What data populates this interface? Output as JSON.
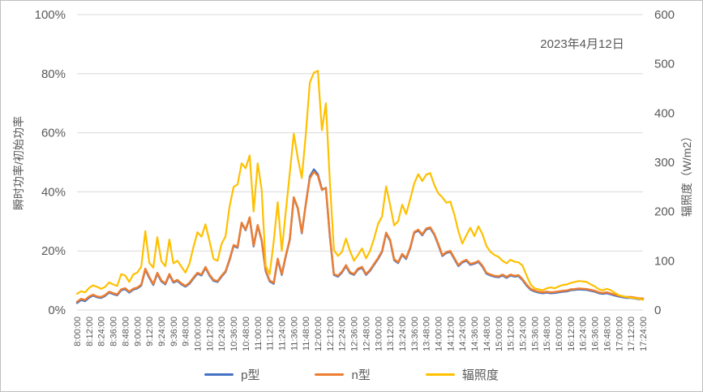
{
  "colors": {
    "axis_text": "#595959",
    "gridline": "#d9d9d9",
    "border": "#bfbfbf",
    "background": "#ffffff"
  },
  "chart_data": {
    "type": "line",
    "title": "",
    "annotation": "2023年4月12日",
    "ylabel_left": "瞬时功率/初始功率",
    "ylabel_right": "辐照度（W/m2）",
    "grid": true,
    "legend_position": "bottom",
    "left_axis": {
      "min": 0,
      "max": 100,
      "unit": "%",
      "ticks": [
        "100%",
        "80%",
        "60%",
        "40%",
        "20%",
        "0%"
      ]
    },
    "right_axis": {
      "min": 0,
      "max": 600,
      "unit": "W/m2",
      "ticks": [
        "600",
        "500",
        "400",
        "300",
        "200",
        "100",
        "0"
      ]
    },
    "x_axis": {
      "start": "8:00:00",
      "end": "17:24:00",
      "sample_step_minutes": 4,
      "tick_labels": [
        "8:00:00",
        "8:12:00",
        "8:24:00",
        "8:36:00",
        "8:48:00",
        "9:00:00",
        "9:12:00",
        "9:24:00",
        "9:36:00",
        "9:48:00",
        "10:00:00",
        "10:12:00",
        "10:24:00",
        "10:36:00",
        "10:48:00",
        "11:00:00",
        "11:12:00",
        "11:24:00",
        "11:36:00",
        "11:48:00",
        "12:00:00",
        "12:12:00",
        "12:24:00",
        "12:36:00",
        "12:48:00",
        "13:00:00",
        "13:12:00",
        "13:24:00",
        "13:36:00",
        "13:48:00",
        "14:00:00",
        "14:12:00",
        "14:24:00",
        "14:36:00",
        "14:48:00",
        "15:00:00",
        "15:12:00",
        "15:24:00",
        "15:36:00",
        "15:48:00",
        "16:00:00",
        "16:12:00",
        "16:24:00",
        "16:36:00",
        "16:48:00",
        "17:00:00",
        "17:12:00",
        "17:24:00"
      ]
    },
    "series": [
      {
        "name": "p型",
        "color": "#4472C4",
        "axis": "left",
        "unit": "%",
        "values": [
          2.4,
          3.4,
          3.0,
          4.2,
          4.9,
          4.3,
          4.1,
          4.8,
          5.9,
          5.4,
          5.0,
          6.7,
          7.1,
          5.9,
          6.9,
          7.3,
          8.3,
          13.7,
          10.9,
          8.5,
          12.3,
          9.7,
          8.7,
          11.9,
          9.3,
          9.9,
          8.7,
          7.9,
          8.9,
          10.7,
          12.3,
          11.7,
          14.3,
          11.7,
          9.9,
          9.5,
          11.3,
          12.9,
          16.9,
          21.7,
          21.1,
          29.4,
          27.0,
          31.2,
          21.5,
          28.6,
          23.5,
          13.1,
          9.7,
          8.9,
          17.1,
          11.9,
          18.1,
          23.8,
          38.0,
          34.4,
          26.0,
          35.9,
          45.2,
          47.6,
          46.0,
          40.9,
          41.2,
          24.7,
          11.9,
          11.3,
          12.7,
          14.9,
          12.5,
          11.9,
          13.7,
          14.3,
          11.9,
          13.3,
          15.3,
          17.3,
          19.7,
          25.9,
          23.5,
          16.9,
          15.9,
          18.7,
          17.3,
          20.9,
          26.1,
          26.9,
          25.3,
          27.3,
          27.7,
          25.5,
          22.1,
          18.3,
          19.3,
          19.7,
          17.3,
          14.9,
          16.1,
          16.7,
          15.3,
          15.7,
          16.3,
          14.7,
          12.3,
          11.7,
          11.3,
          11.1,
          11.7,
          10.9,
          11.7,
          11.3,
          11.5,
          10.1,
          8.3,
          6.9,
          6.3,
          5.9,
          5.7,
          5.9,
          5.7,
          5.8,
          6.0,
          6.2,
          6.3,
          6.7,
          6.8,
          7.0,
          6.9,
          6.8,
          6.5,
          6.2,
          5.7,
          5.5,
          5.7,
          5.3,
          4.9,
          4.6,
          4.3,
          4.1,
          4.1,
          3.9,
          3.7,
          3.6
        ]
      },
      {
        "name": "n型",
        "color": "#ED7D31",
        "axis": "left",
        "unit": "%",
        "values": [
          2.8,
          3.8,
          3.4,
          4.6,
          5.2,
          4.6,
          4.4,
          5.1,
          6.2,
          5.7,
          5.3,
          7.0,
          7.4,
          6.2,
          7.2,
          7.6,
          8.6,
          14.0,
          11.2,
          8.8,
          12.6,
          10.0,
          9.0,
          12.2,
          9.6,
          10.2,
          9.0,
          8.2,
          9.2,
          11.0,
          12.6,
          12.0,
          14.6,
          12.0,
          10.2,
          9.8,
          11.6,
          13.2,
          17.2,
          22.0,
          21.4,
          29.6,
          27.2,
          31.4,
          21.8,
          28.8,
          23.8,
          13.4,
          10.0,
          9.2,
          17.4,
          12.2,
          18.4,
          24.0,
          38.2,
          34.6,
          26.2,
          36.0,
          44.6,
          46.8,
          45.4,
          40.6,
          41.4,
          25.0,
          12.2,
          11.6,
          13.0,
          15.2,
          12.8,
          12.2,
          14.0,
          14.6,
          12.2,
          13.6,
          15.6,
          17.6,
          20.0,
          26.2,
          23.8,
          17.2,
          16.2,
          19.0,
          17.6,
          21.2,
          26.4,
          27.2,
          25.6,
          27.6,
          28.0,
          25.8,
          22.4,
          18.6,
          19.6,
          20.0,
          17.6,
          15.2,
          16.4,
          17.0,
          15.6,
          16.0,
          16.6,
          15.0,
          12.6,
          12.0,
          11.6,
          11.4,
          12.0,
          11.2,
          12.0,
          11.6,
          11.8,
          10.4,
          8.6,
          7.2,
          6.6,
          6.2,
          6.0,
          6.2,
          6.0,
          6.1,
          6.3,
          6.5,
          6.6,
          7.0,
          7.1,
          7.3,
          7.2,
          7.1,
          6.8,
          6.5,
          6.0,
          5.8,
          6.0,
          5.6,
          5.2,
          4.9,
          4.6,
          4.4,
          4.4,
          4.2,
          4.0,
          3.9
        ]
      },
      {
        "name": "辐照度",
        "color": "#FFC000",
        "axis": "right",
        "unit": "W/m2",
        "values": [
          33,
          38,
          36,
          45,
          50,
          47,
          43,
          47,
          56,
          52,
          49,
          73,
          70,
          57,
          72,
          76,
          88,
          160,
          96,
          86,
          148,
          99,
          89,
          143,
          95,
          100,
          88,
          76,
          94,
          128,
          158,
          149,
          174,
          140,
          104,
          100,
          134,
          150,
          210,
          250,
          255,
          298,
          288,
          314,
          200,
          298,
          244,
          90,
          73,
          140,
          219,
          120,
          199,
          278,
          358,
          308,
          268,
          358,
          462,
          482,
          486,
          365,
          420,
          258,
          122,
          110,
          118,
          145,
          120,
          100,
          112,
          125,
          105,
          120,
          145,
          175,
          190,
          251,
          214,
          172,
          180,
          214,
          195,
          225,
          257,
          276,
          262,
          275,
          278,
          254,
          237,
          229,
          218,
          220,
          194,
          160,
          135,
          152,
          167,
          150,
          170,
          154,
          130,
          118,
          112,
          108,
          100,
          95,
          102,
          98,
          97,
          90,
          70,
          52,
          44,
          42,
          40,
          44,
          46,
          44,
          48,
          51,
          52,
          55,
          57,
          59,
          58,
          57,
          52,
          48,
          42,
          40,
          43,
          40,
          35,
          30,
          28,
          26,
          25,
          24,
          23,
          21
        ]
      }
    ]
  }
}
